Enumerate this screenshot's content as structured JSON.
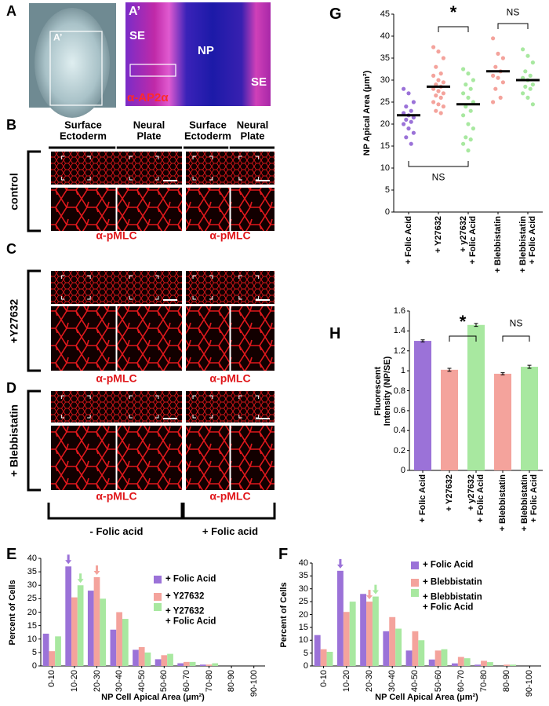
{
  "figure": {
    "panel_a": {
      "label": "A",
      "inset_label": "A’"
    },
    "panel_a_prime": {
      "label": "A’",
      "regions": [
        "SE",
        "NP",
        "SE"
      ],
      "stain": "α-AP2α"
    },
    "panel_b_to_d": {
      "labels": [
        "B",
        "C",
        "D"
      ],
      "column_headers": [
        "Surface\nEctoderm",
        "Neural\nPlate",
        "Surface\nEctoderm",
        "Neural\nPlate"
      ],
      "rows": [
        "control",
        "+Y27632",
        "+ Blebbistatin"
      ],
      "stain_labels": [
        "α-pMLC",
        "α-pMLC",
        "α-pMLC",
        "α-pMLC",
        "α-pMLC",
        "α-pMLC"
      ],
      "conditions": [
        "- Folic acid",
        "+ Folic acid"
      ]
    }
  },
  "chart_data": [
    {
      "type": "bar",
      "panel": "E",
      "ylabel": "Percent of Cells",
      "xlabel": "NP Cell Apical Area (μm²)",
      "categories": [
        "0-10",
        "10-20",
        "20-30",
        "30-40",
        "40-50",
        "50-60",
        "60-70",
        "70-80",
        "80-90",
        "90-100"
      ],
      "series": [
        {
          "name": "+ Folic Acid",
          "color": "#9b72d8",
          "values": [
            12,
            37,
            28,
            13.5,
            6,
            2.5,
            1,
            0.5,
            0,
            0
          ]
        },
        {
          "name": "+ Y27632",
          "color": "#f4a39c",
          "values": [
            5.5,
            25.5,
            33,
            20,
            7,
            4,
            1.5,
            0.5,
            0,
            0
          ]
        },
        {
          "name": "+ Y27632\n+ Folic Acid",
          "color": "#a8e8a0",
          "values": [
            11,
            30,
            25,
            17.5,
            5,
            4.5,
            1.5,
            1,
            0,
            0
          ]
        }
      ],
      "ylim": [
        0,
        40
      ],
      "yticks": [
        0,
        5,
        10,
        15,
        20,
        25,
        30,
        35,
        40
      ]
    },
    {
      "type": "bar",
      "panel": "F",
      "ylabel": "Percent of Cells",
      "xlabel": "NP Cell Apical Area (μm²)",
      "categories": [
        "0-10",
        "10-20",
        "20-30",
        "30-40",
        "40-50",
        "50-60",
        "60-70",
        "70-80",
        "80-90",
        "90-100"
      ],
      "series": [
        {
          "name": "+ Folic Acid",
          "color": "#9b72d8",
          "values": [
            12,
            37,
            28,
            13.5,
            6,
            2.5,
            1,
            0.5,
            0,
            0
          ]
        },
        {
          "name": "+ Blebbistatin",
          "color": "#f4a39c",
          "values": [
            6.5,
            21,
            25,
            19,
            13.5,
            6,
            3.5,
            2,
            0.5,
            0
          ]
        },
        {
          "name": "+ Blebbistatin\n+ Folic Acid",
          "color": "#a8e8a0",
          "values": [
            5.5,
            25,
            27,
            14.5,
            10,
            6.5,
            3,
            1.5,
            0.5,
            0
          ]
        }
      ],
      "ylim": [
        0,
        40
      ],
      "yticks": [
        0,
        5,
        10,
        15,
        20,
        25,
        30,
        35,
        40
      ]
    },
    {
      "type": "strip",
      "panel": "G",
      "ylabel": "NP Apical Area (μm²)",
      "categories": [
        "+ Folic Acid",
        "+ Y27632",
        "+ y27632\n+ Folic Acid",
        "+ Blebbistatin",
        "+ Blebbistatin\n+ Folic Acid"
      ],
      "colors": [
        "#9b72d8",
        "#f4a39c",
        "#a8e8a0",
        "#f4a39c",
        "#a8e8a0"
      ],
      "points": [
        [
          28,
          27,
          25,
          24,
          23,
          22.5,
          22,
          21.5,
          21,
          20.5,
          20,
          19,
          18,
          17,
          15.5
        ],
        [
          37.5,
          36.5,
          35,
          33,
          31.5,
          31,
          30,
          29.5,
          29,
          28.5,
          28,
          27.5,
          27,
          26.5,
          26,
          25,
          24.5,
          24,
          23,
          22.5
        ],
        [
          32.5,
          31.5,
          30,
          29,
          28,
          27,
          26,
          25,
          24,
          23,
          22,
          20,
          19,
          17,
          16.5,
          15.5,
          14
        ],
        [
          39.5,
          36,
          35,
          33,
          32,
          31,
          30.5,
          29.5,
          28,
          26,
          25
        ],
        [
          37,
          35.5,
          34,
          32,
          31,
          30.5,
          30,
          29,
          28.5,
          28,
          27,
          26,
          24.5
        ]
      ],
      "means": [
        22,
        28.5,
        24.5,
        32,
        30
      ],
      "annotations": [
        "*",
        "NS",
        "NS"
      ],
      "ylim": [
        0,
        45
      ],
      "yticks": [
        0,
        5,
        10,
        15,
        20,
        25,
        30,
        35,
        40,
        45
      ]
    },
    {
      "type": "errorbar",
      "panel": "H",
      "ylabel": "Fluorescent\nIntensity (NP/SE)",
      "categories": [
        "+ Folic Acid",
        "+ Y27632",
        "+ y27632\n+ Folic Acid",
        "+ Blebbistatin",
        "+ Blebbistatin\n+ Folic Acid"
      ],
      "colors": [
        "#9b72d8",
        "#f4a39c",
        "#a8e8a0",
        "#f4a39c",
        "#a8e8a0"
      ],
      "values": [
        1.3,
        1.01,
        1.46,
        0.97,
        1.04
      ],
      "errors": [
        0.01,
        0.015,
        0.015,
        0.01,
        0.015
      ],
      "annotations": [
        "*",
        "NS"
      ],
      "ylim": [
        0,
        1.6
      ],
      "yticks": [
        0,
        0.2,
        0.4,
        0.6,
        0.8,
        1,
        1.2,
        1.4,
        1.6
      ]
    }
  ]
}
